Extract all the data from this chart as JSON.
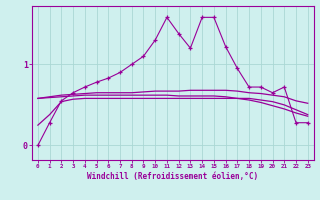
{
  "background_color": "#cff0ee",
  "grid_color": "#aad8d4",
  "line_color": "#990099",
  "x_ticks": [
    0,
    1,
    2,
    3,
    4,
    5,
    6,
    7,
    8,
    9,
    10,
    11,
    12,
    13,
    14,
    15,
    16,
    17,
    18,
    19,
    20,
    21,
    22,
    23
  ],
  "xlabel": "Windchill (Refroidissement éolien,°C)",
  "ylabel_ticks": [
    0,
    1
  ],
  "ylim": [
    -0.18,
    1.72
  ],
  "xlim": [
    -0.5,
    23.5
  ],
  "line1_x": [
    0,
    1,
    2,
    3,
    4,
    5,
    6,
    7,
    8,
    9,
    10,
    11,
    12,
    13,
    14,
    15,
    16,
    17,
    18,
    19,
    20,
    21,
    22,
    23
  ],
  "line1_y": [
    0.0,
    0.28,
    0.55,
    0.65,
    0.72,
    0.78,
    0.83,
    0.9,
    1.0,
    1.1,
    1.3,
    1.58,
    1.38,
    1.2,
    1.58,
    1.58,
    1.22,
    0.95,
    0.72,
    0.72,
    0.65,
    0.72,
    0.28,
    0.28
  ],
  "line2_x": [
    0,
    1,
    2,
    3,
    4,
    5,
    6,
    7,
    8,
    9,
    10,
    11,
    12,
    13,
    14,
    15,
    16,
    17,
    18,
    19,
    20,
    21,
    22,
    23
  ],
  "line2_y": [
    0.58,
    0.6,
    0.62,
    0.63,
    0.64,
    0.65,
    0.65,
    0.65,
    0.65,
    0.66,
    0.67,
    0.67,
    0.67,
    0.68,
    0.68,
    0.68,
    0.68,
    0.67,
    0.65,
    0.64,
    0.62,
    0.6,
    0.55,
    0.52
  ],
  "line3_x": [
    0,
    1,
    2,
    3,
    4,
    5,
    6,
    7,
    8,
    9,
    10,
    11,
    12,
    13,
    14,
    15,
    16,
    17,
    18,
    19,
    20,
    21,
    22,
    23
  ],
  "line3_y": [
    0.58,
    0.59,
    0.6,
    0.61,
    0.62,
    0.62,
    0.62,
    0.62,
    0.62,
    0.62,
    0.62,
    0.62,
    0.61,
    0.61,
    0.61,
    0.61,
    0.6,
    0.58,
    0.56,
    0.53,
    0.49,
    0.45,
    0.4,
    0.36
  ],
  "line4_x": [
    0,
    1,
    2,
    3,
    4,
    5,
    6,
    7,
    8,
    9,
    10,
    11,
    12,
    13,
    14,
    15,
    16,
    17,
    18,
    19,
    20,
    21,
    22,
    23
  ],
  "line4_y": [
    0.25,
    0.38,
    0.54,
    0.57,
    0.58,
    0.58,
    0.58,
    0.58,
    0.58,
    0.58,
    0.58,
    0.58,
    0.58,
    0.58,
    0.58,
    0.58,
    0.58,
    0.58,
    0.58,
    0.56,
    0.54,
    0.5,
    0.44,
    0.38
  ]
}
